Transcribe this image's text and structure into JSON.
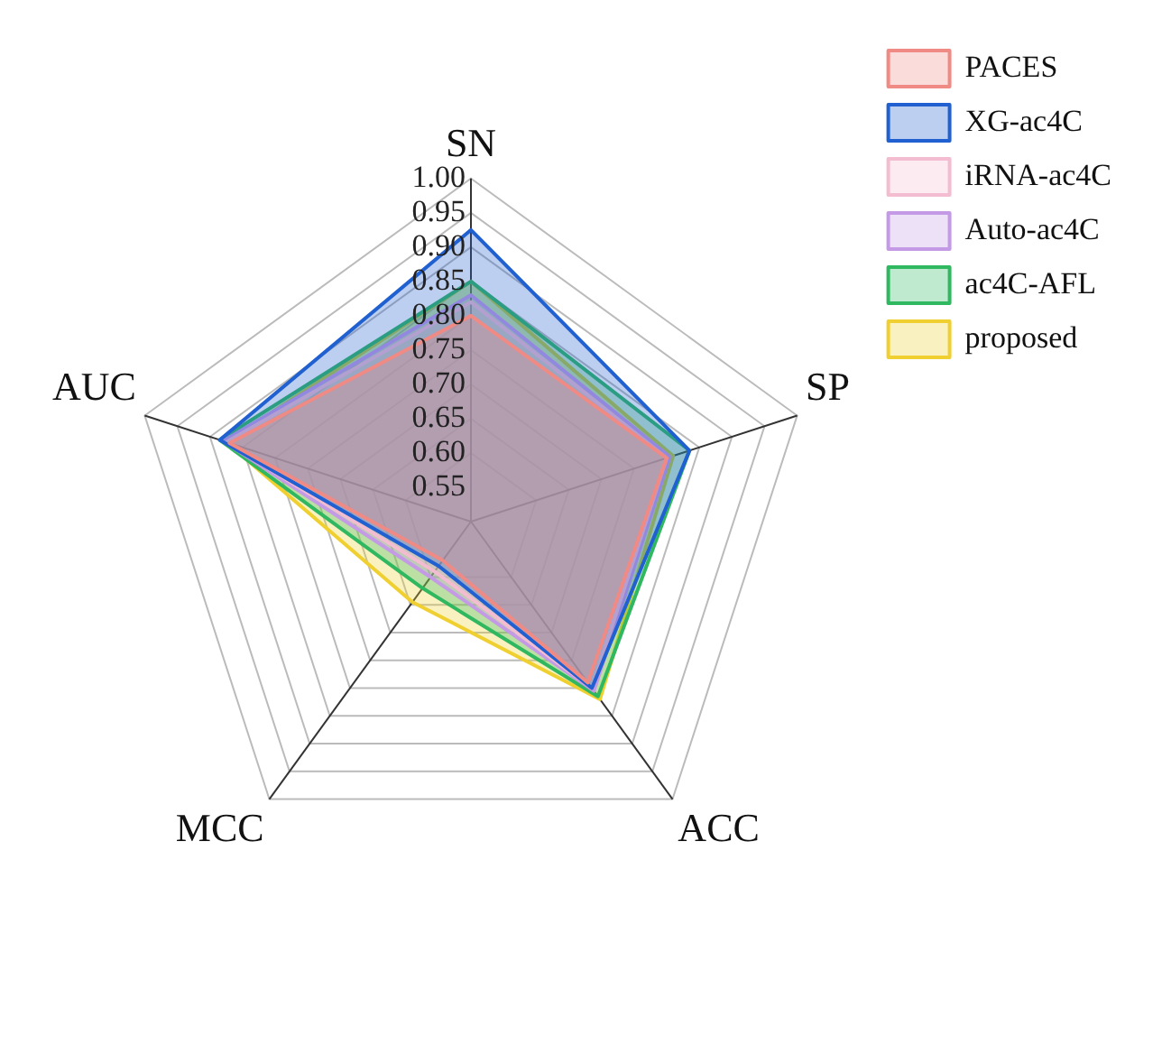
{
  "chart_data": {
    "type": "radar",
    "categories": [
      "SN",
      "SP",
      "ACC",
      "MCC",
      "AUC"
    ],
    "series": [
      {
        "name": "PACES",
        "color": "#f08a84",
        "values": [
          0.8,
          0.8,
          0.79,
          0.57,
          0.87
        ]
      },
      {
        "name": "XG-ac4C",
        "color": "#2060d0",
        "values": [
          0.925,
          0.835,
          0.8,
          0.58,
          0.885
        ]
      },
      {
        "name": "iRNA-ac4C",
        "color": "#f4bcd0",
        "values": [
          0.82,
          0.8,
          0.8,
          0.59,
          0.875
        ]
      },
      {
        "name": "Auto-ac4C",
        "color": "#c49ae6",
        "values": [
          0.83,
          0.805,
          0.805,
          0.6,
          0.88
        ]
      },
      {
        "name": "ac4C-AFL",
        "color": "#30b860",
        "values": [
          0.85,
          0.835,
          0.815,
          0.62,
          0.885
        ]
      },
      {
        "name": "proposed",
        "color": "#f0d030",
        "values": [
          0.85,
          0.81,
          0.82,
          0.645,
          0.875
        ]
      }
    ],
    "ylim": [
      0.5,
      1.0
    ],
    "yticks": [
      0.55,
      {
        "value": 0.6,
        "label": "0.60"
      },
      0.65,
      {
        "value": 0.7,
        "label": "0.70"
      },
      0.75,
      {
        "value": 0.8,
        "label": "0.80"
      },
      0.85,
      {
        "value": 0.9,
        "label": "0.90"
      },
      0.95,
      {
        "value": 1.0,
        "label": "1.00"
      }
    ],
    "grid": true,
    "legend": "top right"
  }
}
